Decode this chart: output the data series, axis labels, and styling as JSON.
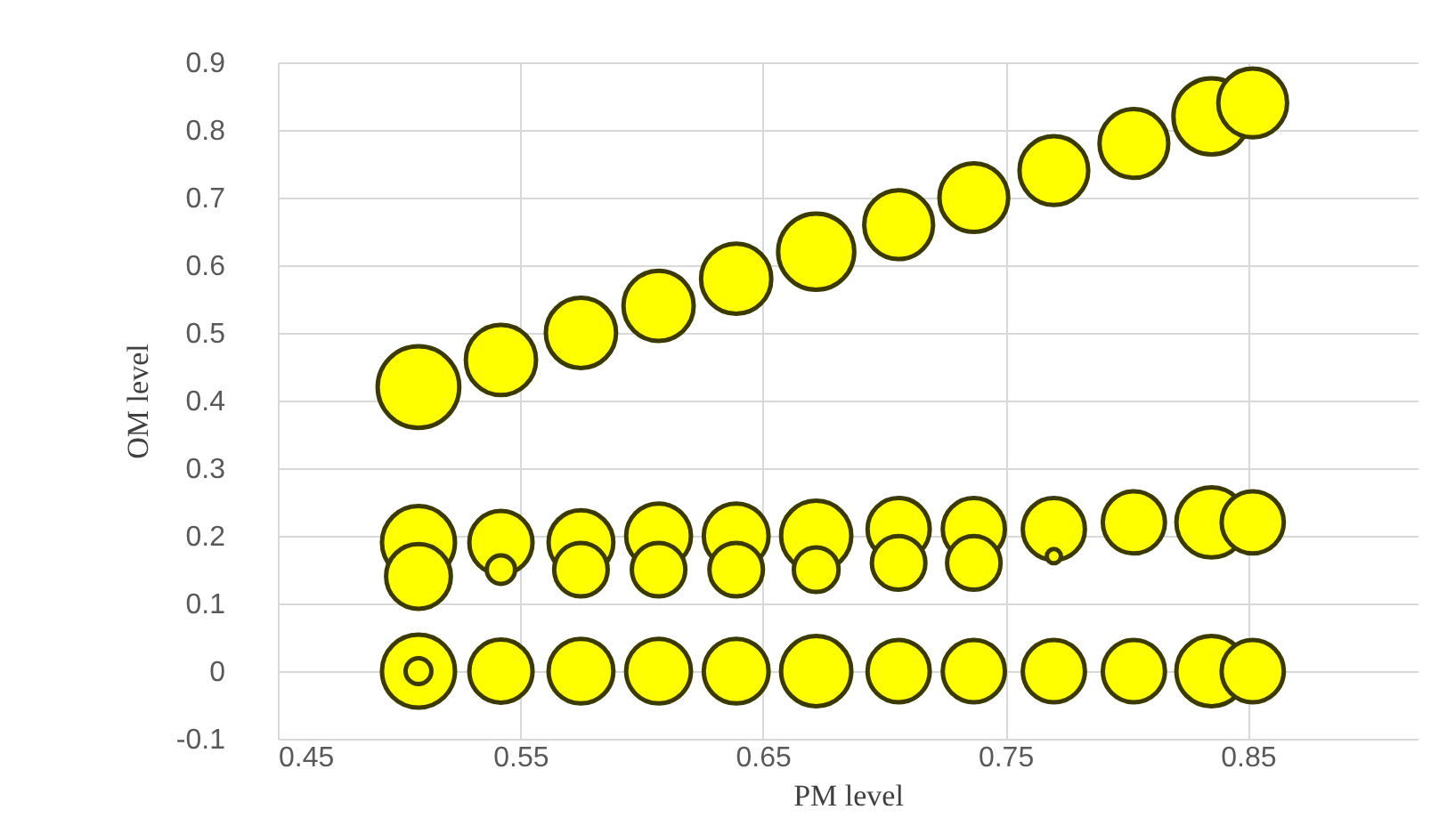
{
  "chart_data": {
    "type": "bubble",
    "xlabel": "PM level",
    "ylabel": "OM level",
    "xlim": [
      0.45,
      0.92
    ],
    "xticks": [
      0.45,
      0.55,
      0.65,
      0.75,
      0.85
    ],
    "ylim": [
      -0.1,
      0.9
    ],
    "yticks": [
      -0.1,
      0,
      0.1,
      0.2,
      0.3,
      0.4,
      0.5,
      0.6,
      0.7,
      0.8,
      0.9
    ],
    "grid": true,
    "legend": false,
    "series": [
      {
        "color": "#ffff00",
        "x": [
          0.508,
          0.542,
          0.575,
          0.607,
          0.639,
          0.672,
          0.706,
          0.737,
          0.77,
          0.803,
          0.835,
          0.852
        ],
        "values": [
          0.42,
          0.46,
          0.5,
          0.54,
          0.58,
          0.62,
          0.66,
          0.7,
          0.74,
          0.78,
          0.82,
          0.84
        ],
        "sizes": [
          1,
          0.74,
          0.74,
          0.74,
          0.74,
          0.87,
          0.71,
          0.71,
          0.71,
          0.71,
          0.87,
          0.71
        ]
      },
      {
        "color": "#ffff00",
        "x": [
          0.508,
          0.542,
          0.575,
          0.607,
          0.639,
          0.672,
          0.706,
          0.737,
          0.77,
          0.803,
          0.835,
          0.852
        ],
        "values": [
          0.19,
          0.19,
          0.19,
          0.2,
          0.2,
          0.2,
          0.21,
          0.21,
          0.21,
          0.22,
          0.22,
          0.22
        ],
        "sizes": [
          0.8,
          0.6,
          0.63,
          0.63,
          0.63,
          0.74,
          0.58,
          0.58,
          0.58,
          0.58,
          0.74,
          0.58
        ]
      },
      {
        "color": "#ffff00",
        "x": [
          0.508,
          0.542,
          0.575,
          0.607,
          0.639,
          0.672,
          0.706,
          0.737,
          0.77
        ],
        "values": [
          0.14,
          0.15,
          0.15,
          0.15,
          0.15,
          0.15,
          0.16,
          0.16,
          0.17
        ],
        "sizes": [
          0.63,
          0.12,
          0.43,
          0.43,
          0.43,
          0.3,
          0.43,
          0.43,
          0.03
        ]
      },
      {
        "color": "#ffff00",
        "x": [
          0.508,
          0.542,
          0.575,
          0.607,
          0.639,
          0.672,
          0.706,
          0.737,
          0.77,
          0.803,
          0.835,
          0.852,
          0.508
        ],
        "values": [
          0,
          0,
          0,
          0,
          0,
          0,
          0,
          0,
          0,
          0,
          0,
          0,
          0
        ],
        "sizes": [
          0.8,
          0.6,
          0.63,
          0.63,
          0.63,
          0.74,
          0.58,
          0.58,
          0.58,
          0.58,
          0.74,
          0.58,
          0.1
        ]
      }
    ]
  }
}
